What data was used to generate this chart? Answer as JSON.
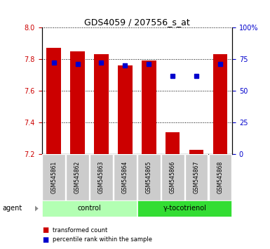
{
  "title": "GDS4059 / 207556_s_at",
  "samples": [
    "GSM545861",
    "GSM545862",
    "GSM545863",
    "GSM545864",
    "GSM545865",
    "GSM545866",
    "GSM545867",
    "GSM545868"
  ],
  "transformed_count": [
    7.87,
    7.85,
    7.83,
    7.76,
    7.79,
    7.34,
    7.23,
    7.83
  ],
  "percentile_rank": [
    72,
    71,
    72,
    70,
    71,
    62,
    62,
    71
  ],
  "bar_bottom": 7.2,
  "ylim_left": [
    7.2,
    8.0
  ],
  "ylim_right": [
    0,
    100
  ],
  "yticks_left": [
    7.2,
    7.4,
    7.6,
    7.8,
    8.0
  ],
  "yticks_right": [
    0,
    25,
    50,
    75,
    100
  ],
  "ytick_labels_right": [
    "0",
    "25",
    "50",
    "75",
    "100%"
  ],
  "groups": [
    {
      "label": "control",
      "indices": [
        0,
        1,
        2,
        3
      ],
      "color": "#b3ffb3"
    },
    {
      "label": "γ-tocotrienol",
      "indices": [
        4,
        5,
        6,
        7
      ],
      "color": "#33dd33"
    }
  ],
  "bar_color": "#cc0000",
  "dot_color": "#0000cc",
  "grid_color": "#000000",
  "bg_color": "#ffffff",
  "sample_box_color": "#cccccc",
  "left_tick_color": "#cc0000",
  "right_tick_color": "#0000cc",
  "agent_label": "agent",
  "legend_items": [
    {
      "label": "transformed count",
      "color": "#cc0000"
    },
    {
      "label": "percentile rank within the sample",
      "color": "#0000cc"
    }
  ]
}
